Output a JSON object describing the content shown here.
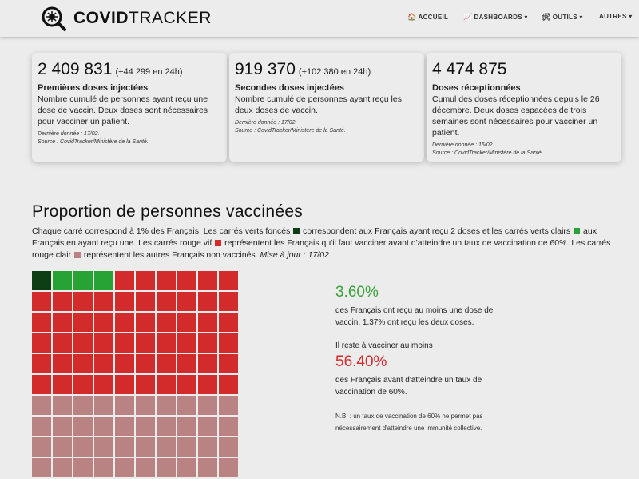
{
  "brand": {
    "bold": "COVID",
    "light": "TRACKER"
  },
  "nav": [
    {
      "icon": "🏠",
      "label": "ACCUEIL",
      "caret": ""
    },
    {
      "icon": "📈",
      "label": "DASHBOARDS",
      "caret": "▾"
    },
    {
      "icon": "🛠",
      "label": "OUTILS",
      "caret": "▾"
    },
    {
      "icon": "",
      "label": "AUTRES",
      "caret": "▾"
    }
  ],
  "cards": [
    {
      "big": "2 409 831",
      "delta": "(+44 299 en 24h)",
      "title": "Premières doses injectées",
      "desc": "Nombre cumulé de personnes ayant reçu une dose de vaccin. Deux doses sont nécessaires pour vacciner un patient.",
      "updated": "Dernière donnée : 17/02.",
      "source": "Source : CovidTracker/Ministère de la Santé."
    },
    {
      "big": "919 370",
      "delta": "(+102 380 en 24h)",
      "title": "Secondes doses injectées",
      "desc": "Nombre cumulé de personnes ayant reçu les deux doses de vaccin.",
      "updated": "Dernière donnée : 17/02.",
      "source": "Source : CovidTracker/Ministère de la Santé."
    },
    {
      "big": "4 474 875",
      "delta": "",
      "title": "Doses réceptionnées",
      "desc": "Cumul des doses réceptionnées depuis le 26 décembre. Deux doses espacées de trois semaines sont nécessaires pour vacciner un patient.",
      "updated": "Dernière donnée : 15/02.",
      "source": "Source : CovidTracker/Ministère de la Santé."
    }
  ],
  "section": {
    "title": "Proportion de personnes vaccinées",
    "d1": "Chaque carré correspond à 1% des Français. Les carrés verts foncés",
    "d2": "correspondent aux Français ayant reçu 2 doses et les carrés verts clairs",
    "d3": "aux Français en ayant reçu une. Les carrés rouge vif",
    "d4": "représentent les Français qu'il faut vacciner avant d'atteindre un taux de vaccination de 60%. Les carrés rouge clair",
    "d5": "représentent les autres Français non vaccinés.",
    "update": "Mise à jour : 17/02"
  },
  "colors": {
    "dark_green": "#0d3d12",
    "light_green": "#27a336",
    "bright_red": "#d32b2b",
    "light_red": "#b98383"
  },
  "grid": {
    "two_doses": 1,
    "one_dose": 3,
    "to_vaccinate": 56,
    "others": 40
  },
  "stats": {
    "pct1": "3.60%",
    "pct1_text": "des Français ont reçu au moins une dose de vaccin, 1.37% ont reçu les deux doses.",
    "remaining_label": "Il reste à vacciner au moins",
    "pct2": "56.40%",
    "pct2_text": "des Français avant d'atteindre un taux de vaccination de 60%.",
    "note": "N.B. : un taux de vaccination de 60% ne permet pas nécessairement d'atteindre une immunité collective."
  }
}
